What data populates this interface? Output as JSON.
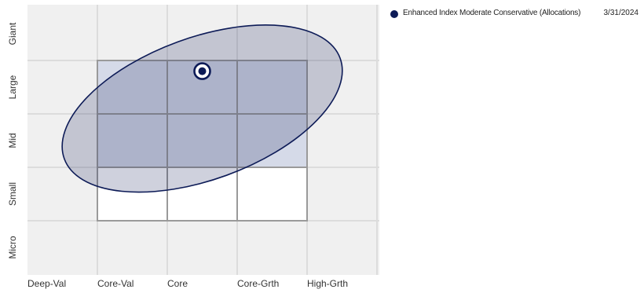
{
  "chart_data": {
    "type": "scatter",
    "title": "",
    "x_categories": [
      "Deep-Val",
      "Core-Val",
      "Core",
      "Core-Grth",
      "High-Grth"
    ],
    "y_categories": [
      "Micro",
      "Small",
      "Mid",
      "Large",
      "Giant"
    ],
    "xlim": [
      0,
      5
    ],
    "ylim": [
      0,
      5
    ],
    "grid": true,
    "series": [
      {
        "name": "Enhanced Index Moderate Conservative (Allocations)",
        "date": "3/31/2024",
        "color": "#0d1b57",
        "centroid": {
          "x": 2.5,
          "y": 3.8
        },
        "ownership_zone": {
          "cx": 2.5,
          "cy": 3.1,
          "rx": 2.1,
          "ry": 1.33,
          "rotation_deg": -20
        }
      }
    ],
    "style_box": {
      "x_range": [
        1,
        4
      ],
      "rows": [
        {
          "y_range": [
            3,
            4
          ],
          "fill": "#d5dae8"
        },
        {
          "y_range": [
            2,
            3
          ],
          "fill": "#d5dae8"
        },
        {
          "y_range": [
            1,
            2
          ],
          "fill": "#ffffff"
        }
      ]
    },
    "legend": {
      "position": "top-right"
    }
  }
}
